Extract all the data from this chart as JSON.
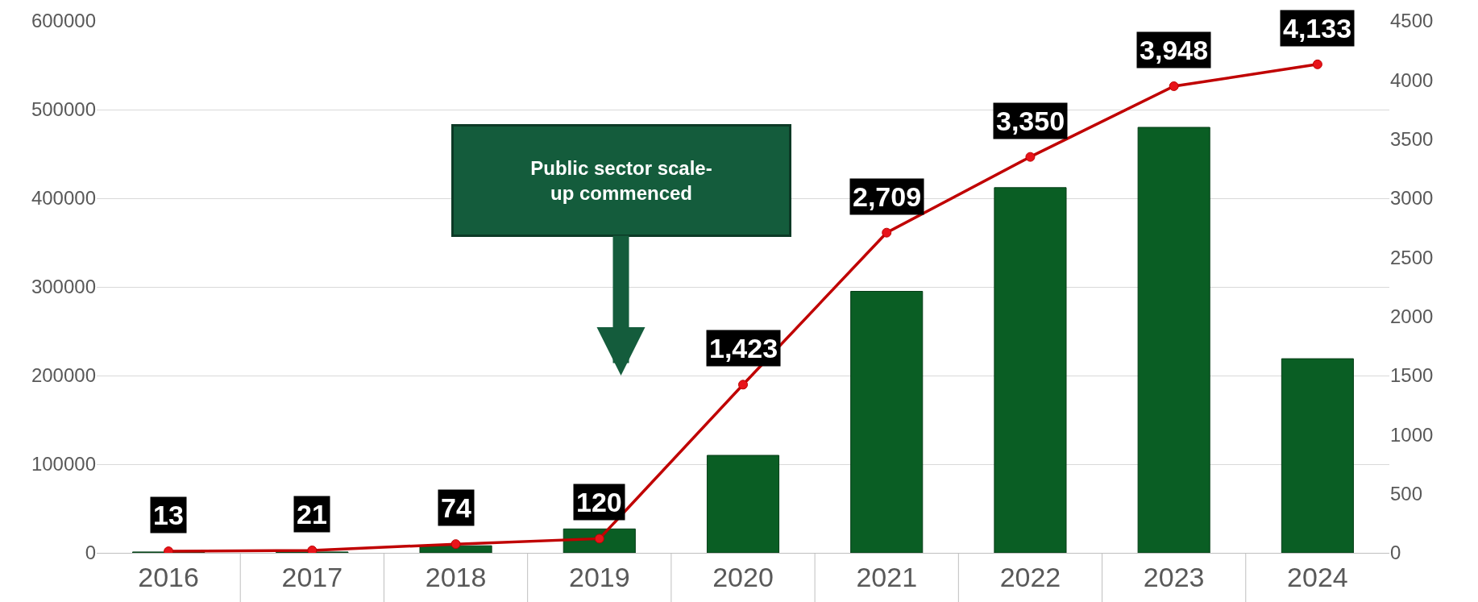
{
  "chart_data": {
    "type": "bar",
    "categories": [
      "2016",
      "2017",
      "2018",
      "2019",
      "2020",
      "2021",
      "2022",
      "2023",
      "2024"
    ],
    "series": [
      {
        "color": "#0a5e24",
        "values": [
          1000,
          1000,
          8000,
          27000,
          110000,
          295000,
          412000,
          480000,
          219000
        ]
      },
      {
        "type": "line",
        "axis": "y2",
        "color": "#c00000",
        "marker": "circle",
        "values": [
          13,
          21,
          74,
          120,
          1423,
          2709,
          3350,
          3948,
          4133
        ],
        "value_labels": [
          "13",
          "21",
          "74",
          "120",
          "1,423",
          "2,709",
          "3,350",
          "3,948",
          "4,133"
        ]
      }
    ],
    "ylim": [
      0,
      600000
    ],
    "yticks": [
      0,
      100000,
      200000,
      300000,
      400000,
      500000,
      600000
    ],
    "y2lim": [
      0,
      4500
    ],
    "y2ticks": [
      0,
      500,
      1000,
      1500,
      2000,
      2500,
      3000,
      3500,
      4000,
      4500
    ],
    "grid": "y",
    "annotations": [
      "Public sector scale-\nup commenced"
    ]
  }
}
